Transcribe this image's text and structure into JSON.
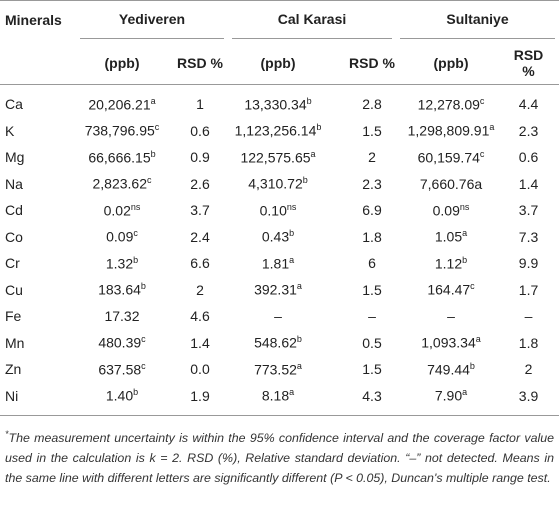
{
  "table": {
    "header": {
      "minerals": "Minerals",
      "groups": [
        "Yediveren",
        "Cal Karasi",
        "Sultaniye"
      ],
      "subheaders": [
        "(ppb)",
        "RSD %",
        "(ppb)",
        "RSD %",
        "(ppb)",
        "RSD %"
      ]
    },
    "rows": [
      {
        "mineral": "Ca",
        "cells": [
          {
            "text": "20,206.21",
            "sup": "a"
          },
          {
            "text": "1"
          },
          {
            "text": "13,330.34",
            "sup": "b"
          },
          {
            "text": "2.8"
          },
          {
            "text": "12,278.09",
            "sup": "c"
          },
          {
            "text": "4.4"
          }
        ]
      },
      {
        "mineral": "K",
        "cells": [
          {
            "text": "738,796.95",
            "sup": "c"
          },
          {
            "text": "0.6"
          },
          {
            "text": "1,123,256.14",
            "sup": "b"
          },
          {
            "text": "1.5"
          },
          {
            "text": "1,298,809.91",
            "sup": "a"
          },
          {
            "text": "2.3"
          }
        ]
      },
      {
        "mineral": "Mg",
        "cells": [
          {
            "text": "66,666.15",
            "sup": "b"
          },
          {
            "text": "0.9"
          },
          {
            "text": "122,575.65",
            "sup": "a"
          },
          {
            "text": "2"
          },
          {
            "text": "60,159.74",
            "sup": "c"
          },
          {
            "text": "0.6"
          }
        ]
      },
      {
        "mineral": "Na",
        "cells": [
          {
            "text": "2,823.62",
            "sup": "c"
          },
          {
            "text": "2.6"
          },
          {
            "text": "4,310.72",
            "sup": "b"
          },
          {
            "text": "2.3"
          },
          {
            "text": "7,660.76a"
          },
          {
            "text": "1.4"
          }
        ]
      },
      {
        "mineral": "Cd",
        "cells": [
          {
            "text": "0.02",
            "sup": "ns"
          },
          {
            "text": "3.7"
          },
          {
            "text": "0.10",
            "sup": "ns"
          },
          {
            "text": "6.9"
          },
          {
            "text": "0.09",
            "sup": "ns"
          },
          {
            "text": "3.7"
          }
        ]
      },
      {
        "mineral": "Co",
        "cells": [
          {
            "text": "0.09",
            "sup": "c"
          },
          {
            "text": "2.4"
          },
          {
            "text": "0.43",
            "sup": "b"
          },
          {
            "text": "1.8"
          },
          {
            "text": "1.05",
            "sup": "a"
          },
          {
            "text": "7.3"
          }
        ]
      },
      {
        "mineral": "Cr",
        "cells": [
          {
            "text": "1.32",
            "sup": "b"
          },
          {
            "text": "6.6"
          },
          {
            "text": "1.81",
            "sup": "a"
          },
          {
            "text": "6"
          },
          {
            "text": "1.12",
            "sup": "b"
          },
          {
            "text": "9.9"
          }
        ]
      },
      {
        "mineral": "Cu",
        "cells": [
          {
            "text": "183.64",
            "sup": "b"
          },
          {
            "text": "2"
          },
          {
            "text": "392.31",
            "sup": "a"
          },
          {
            "text": "1.5"
          },
          {
            "text": "164.47",
            "sup": "c"
          },
          {
            "text": "1.7"
          }
        ]
      },
      {
        "mineral": "Fe",
        "cells": [
          {
            "text": "17.32"
          },
          {
            "text": "4.6"
          },
          {
            "text": "–"
          },
          {
            "text": "–"
          },
          {
            "text": "–"
          },
          {
            "text": "–"
          }
        ]
      },
      {
        "mineral": "Mn",
        "cells": [
          {
            "text": "480.39",
            "sup": "c"
          },
          {
            "text": "1.4"
          },
          {
            "text": "548.62",
            "sup": "b"
          },
          {
            "text": "0.5"
          },
          {
            "text": "1,093.34",
            "sup": "a"
          },
          {
            "text": "1.8"
          }
        ]
      },
      {
        "mineral": "Zn",
        "cells": [
          {
            "text": "637.58",
            "sup": "c"
          },
          {
            "text": "0.0"
          },
          {
            "text": "773.52",
            "sup": "a"
          },
          {
            "text": "1.5"
          },
          {
            "text": "749.44",
            "sup": "b"
          },
          {
            "text": "2"
          }
        ]
      },
      {
        "mineral": "Ni",
        "cells": [
          {
            "text": "1.40",
            "sup": "b"
          },
          {
            "text": "1.9"
          },
          {
            "text": "8.18",
            "sup": "a"
          },
          {
            "text": "4.3"
          },
          {
            "text": "7.90",
            "sup": "a"
          },
          {
            "text": "3.9"
          }
        ]
      }
    ],
    "footnote": {
      "mark": "*",
      "text": "The measurement uncertainty is within the 95% confidence interval and the coverage factor value used in the calculation is k = 2. RSD (%), Relative standard deviation. “–” not detected. Means in the same line with different letters are significantly different (P < 0.05), Duncan's multiple range test."
    }
  }
}
